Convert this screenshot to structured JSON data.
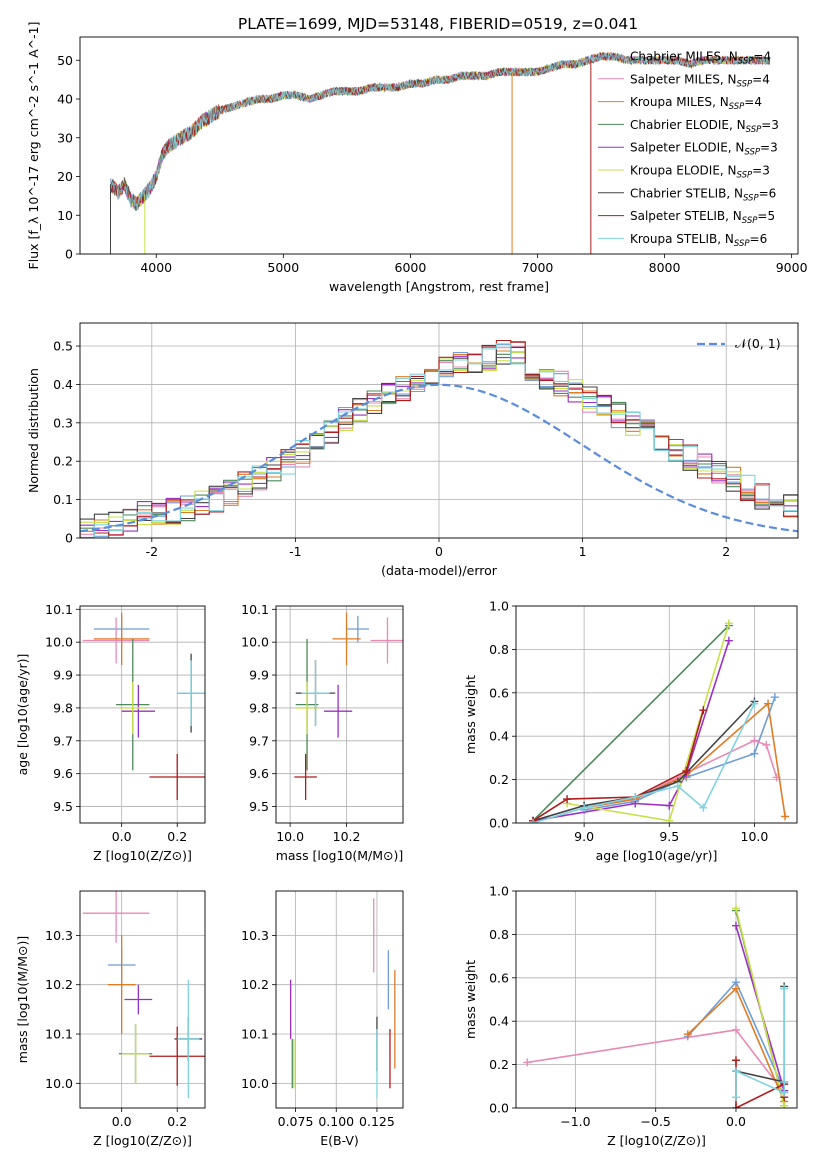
{
  "figure_title": "PLATE=1699, MJD=53148, FIBERID=0519, z=0.041",
  "models": [
    {
      "name": "Chabrier MILES",
      "nssp": "4",
      "color": "#6f9ed8"
    },
    {
      "name": "Salpeter MILES",
      "nssp": "4",
      "color": "#e88ab6"
    },
    {
      "name": "Kroupa MILES",
      "nssp": "4",
      "color": "#e07b26"
    },
    {
      "name": "Chabrier ELODIE",
      "nssp": "3",
      "color": "#4d8a5a"
    },
    {
      "name": "Salpeter ELODIE",
      "nssp": "3",
      "color": "#9b30c2"
    },
    {
      "name": "Kroupa ELODIE",
      "nssp": "3",
      "color": "#c8e04a"
    },
    {
      "name": "Chabrier STELIB",
      "nssp": "6",
      "color": "#444444"
    },
    {
      "name": "Salpeter STELIB",
      "nssp": "5",
      "color": "#b01c1c"
    },
    {
      "name": "Kroupa STELIB",
      "nssp": "6",
      "color": "#7fd3df"
    }
  ],
  "chart_data": [
    {
      "id": "spectrum",
      "type": "line",
      "xlabel": "wavelength [Angstrom, rest frame]",
      "ylabel": "Flux [f_λ 10^-17 erg cm^-2 s^-1 A^-1]",
      "xlim": [
        3400,
        9050
      ],
      "ylim": [
        0,
        56
      ],
      "xticks": [
        4000,
        5000,
        6000,
        7000,
        8000,
        9000
      ],
      "yticks": [
        0,
        10,
        20,
        30,
        40,
        50
      ],
      "grid": false,
      "legend": "upper-right",
      "spectrum_points": [
        [
          3640,
          18
        ],
        [
          3700,
          16
        ],
        [
          3750,
          18
        ],
        [
          3800,
          14
        ],
        [
          3850,
          13
        ],
        [
          3900,
          15
        ],
        [
          3950,
          17
        ],
        [
          4000,
          20
        ],
        [
          4050,
          26
        ],
        [
          4100,
          28
        ],
        [
          4150,
          29
        ],
        [
          4200,
          30
        ],
        [
          4250,
          31
        ],
        [
          4300,
          32
        ],
        [
          4350,
          34
        ],
        [
          4400,
          35
        ],
        [
          4500,
          37
        ],
        [
          4600,
          38
        ],
        [
          4700,
          39
        ],
        [
          4800,
          40
        ],
        [
          4900,
          40
        ],
        [
          5000,
          41
        ],
        [
          5100,
          41
        ],
        [
          5200,
          40
        ],
        [
          5300,
          41
        ],
        [
          5400,
          42
        ],
        [
          5500,
          42
        ],
        [
          5600,
          42
        ],
        [
          5700,
          43
        ],
        [
          5800,
          43
        ],
        [
          5900,
          43
        ],
        [
          6000,
          44
        ],
        [
          6100,
          44
        ],
        [
          6200,
          45
        ],
        [
          6300,
          45
        ],
        [
          6400,
          46
        ],
        [
          6500,
          46
        ],
        [
          6600,
          46
        ],
        [
          6700,
          47
        ],
        [
          6800,
          47
        ],
        [
          6900,
          47
        ],
        [
          7000,
          47
        ],
        [
          7100,
          48
        ],
        [
          7200,
          49
        ],
        [
          7300,
          49
        ],
        [
          7400,
          50
        ],
        [
          7500,
          51
        ],
        [
          7600,
          51
        ],
        [
          7700,
          50
        ],
        [
          7800,
          50
        ],
        [
          7900,
          50
        ],
        [
          8000,
          50
        ],
        [
          8100,
          50
        ],
        [
          8200,
          49
        ],
        [
          8300,
          50
        ],
        [
          8400,
          50
        ],
        [
          8500,
          50
        ],
        [
          8600,
          50
        ],
        [
          8700,
          50
        ],
        [
          8830,
          50
        ]
      ],
      "dropouts": [
        {
          "x": 3640,
          "model": "Chabrier STELIB"
        },
        {
          "x": 3910,
          "model": "Kroupa ELODIE"
        },
        {
          "x": 6800,
          "model": "Kroupa MILES"
        },
        {
          "x": 7420,
          "model": "Salpeter STELIB"
        }
      ]
    },
    {
      "id": "residuals",
      "type": "histogram",
      "xlabel": "(data-model)/error",
      "ylabel": "Normed distribution",
      "xlim": [
        -2.5,
        2.5
      ],
      "ylim": [
        0,
        0.56
      ],
      "xticks": [
        -2,
        -1,
        0,
        1,
        2
      ],
      "yticks": [
        0.0,
        0.1,
        0.2,
        0.3,
        0.4,
        0.5
      ],
      "grid": true,
      "legend": "upper-right",
      "reference_label": "𝒩(0, 1)",
      "bin_edges_start": -2.5,
      "bin_width": 0.1,
      "base_hist": [
        0.02,
        0.03,
        0.04,
        0.05,
        0.06,
        0.06,
        0.07,
        0.08,
        0.09,
        0.1,
        0.12,
        0.14,
        0.16,
        0.18,
        0.2,
        0.22,
        0.25,
        0.28,
        0.31,
        0.33,
        0.35,
        0.37,
        0.39,
        0.41,
        0.43,
        0.44,
        0.45,
        0.46,
        0.47,
        0.48,
        0.48,
        0.44,
        0.42,
        0.4,
        0.38,
        0.36,
        0.34,
        0.32,
        0.3,
        0.28,
        0.26,
        0.23,
        0.21,
        0.19,
        0.17,
        0.15,
        0.13,
        0.11,
        0.1,
        0.09,
        0.08,
        0.07,
        0.06,
        0.05,
        0.04,
        0.04,
        0.03,
        0.03,
        0.03,
        0.02,
        0.02
      ]
    },
    {
      "id": "age_vs_Z",
      "type": "errorbar",
      "xlabel": "Z [log10(Z/Z⊙)]",
      "ylabel": "age  [log10(age/yr)]",
      "xlim": [
        -0.15,
        0.3
      ],
      "ylim": [
        9.45,
        10.11
      ],
      "xticks": [
        "0.0",
        "0.2"
      ],
      "yticks": [
        "9.5",
        "9.6",
        "9.7",
        "9.8",
        "9.9",
        "10.0",
        "10.1"
      ],
      "grid": true,
      "points": [
        {
          "x": 0.0,
          "y": 10.04,
          "xerr": 0.1,
          "yerr": 0.04
        },
        {
          "x": -0.02,
          "y": 10.005,
          "xerr": 0.12,
          "yerr": 0.07
        },
        {
          "x": 0.0,
          "y": 10.01,
          "xerr": 0.1,
          "yerr": 0.08
        },
        {
          "x": 0.04,
          "y": 9.81,
          "xerr": 0.06,
          "yerr": 0.2
        },
        {
          "x": 0.06,
          "y": 9.79,
          "xerr": 0.06,
          "yerr": 0.08
        },
        {
          "x": 0.04,
          "y": 9.8,
          "xerr": 0.05,
          "yerr": 0.08
        },
        {
          "x": 0.25,
          "y": 9.845,
          "xerr": 0.05,
          "yerr": 0.12
        },
        {
          "x": 0.2,
          "y": 9.59,
          "xerr": 0.1,
          "yerr": 0.07
        },
        {
          "x": 0.25,
          "y": 9.845,
          "xerr": 0.05,
          "yerr": 0.1
        }
      ]
    },
    {
      "id": "age_vs_mass",
      "type": "errorbar",
      "xlabel": "mass [log10(M/M⊙)]",
      "ylabel": "",
      "xlim": [
        9.95,
        10.4
      ],
      "ylim": [
        9.45,
        10.11
      ],
      "xticks": [
        "10.0",
        "10.2"
      ],
      "yticks": [
        "9.5",
        "9.6",
        "9.7",
        "9.8",
        "9.9",
        "10.0",
        "10.1"
      ],
      "grid": true,
      "points": [
        {
          "x": 10.24,
          "y": 10.04,
          "xerr": 0.04,
          "yerr": 0.04
        },
        {
          "x": 10.345,
          "y": 10.005,
          "xerr": 0.06,
          "yerr": 0.07
        },
        {
          "x": 10.2,
          "y": 10.01,
          "xerr": 0.05,
          "yerr": 0.08
        },
        {
          "x": 10.06,
          "y": 9.81,
          "xerr": 0.04,
          "yerr": 0.2
        },
        {
          "x": 10.17,
          "y": 9.79,
          "xerr": 0.05,
          "yerr": 0.08
        },
        {
          "x": 10.06,
          "y": 9.8,
          "xerr": 0.04,
          "yerr": 0.08
        },
        {
          "x": 10.09,
          "y": 9.845,
          "xerr": 0.07,
          "yerr": 0.1
        },
        {
          "x": 10.055,
          "y": 9.59,
          "xerr": 0.04,
          "yerr": 0.07
        },
        {
          "x": 10.09,
          "y": 9.845,
          "xerr": 0.05,
          "yerr": 0.1
        }
      ]
    },
    {
      "id": "weight_vs_age",
      "type": "line",
      "xlabel": "age  [log10(age/yr)]",
      "ylabel": "mass weight",
      "xlim": [
        8.6,
        10.25
      ],
      "ylim": [
        0,
        1.0
      ],
      "xticks": [
        "9.0",
        "9.5",
        "10.0"
      ],
      "yticks": [
        "0.0",
        "0.2",
        "0.4",
        "0.6",
        "0.8",
        "1.0"
      ],
      "grid": true,
      "series": [
        {
          "model": "Chabrier MILES",
          "x": [
            9.0,
            9.3,
            9.6,
            10.0,
            10.12
          ],
          "y": [
            0.06,
            0.1,
            0.21,
            0.32,
            0.58
          ]
        },
        {
          "model": "Salpeter MILES",
          "x": [
            9.0,
            9.3,
            9.6,
            10.0,
            10.07,
            10.13
          ],
          "y": [
            0.07,
            0.11,
            0.23,
            0.38,
            0.36,
            0.21
          ]
        },
        {
          "model": "Kroupa MILES",
          "x": [
            9.0,
            9.3,
            9.6,
            10.08,
            10.18
          ],
          "y": [
            0.07,
            0.11,
            0.22,
            0.55,
            0.03
          ]
        },
        {
          "model": "Chabrier ELODIE",
          "x": [
            8.7,
            9.85
          ],
          "y": [
            0.01,
            0.91
          ]
        },
        {
          "model": "Salpeter ELODIE",
          "x": [
            8.7,
            9.3,
            9.5,
            9.6,
            9.85
          ],
          "y": [
            0.01,
            0.09,
            0.08,
            0.23,
            0.84
          ]
        },
        {
          "model": "Kroupa ELODIE",
          "x": [
            8.9,
            9.5,
            9.85
          ],
          "y": [
            0.09,
            0.01,
            0.92
          ]
        },
        {
          "model": "Chabrier STELIB",
          "x": [
            8.7,
            9.0,
            9.3,
            9.55,
            10.0
          ],
          "y": [
            0.01,
            0.08,
            0.12,
            0.19,
            0.56
          ]
        },
        {
          "model": "Salpeter STELIB",
          "x": [
            8.7,
            8.9,
            9.3,
            9.6,
            9.7
          ],
          "y": [
            0.01,
            0.11,
            0.12,
            0.24,
            0.52
          ]
        },
        {
          "model": "Kroupa STELIB",
          "x": [
            8.7,
            9.0,
            9.3,
            9.55,
            9.7,
            10.0
          ],
          "y": [
            0.0,
            0.07,
            0.12,
            0.17,
            0.07,
            0.55
          ]
        }
      ]
    },
    {
      "id": "mass_vs_Z",
      "type": "errorbar",
      "xlabel": "Z [log10(Z/Z⊙)]",
      "ylabel": "mass [log10(M/M⊙)]",
      "xlim": [
        -0.15,
        0.3
      ],
      "ylim": [
        9.95,
        10.39
      ],
      "xticks": [
        "0.0",
        "0.2"
      ],
      "yticks": [
        "10.0",
        "10.1",
        "10.2",
        "10.3"
      ],
      "grid": true,
      "points": [
        {
          "x": 0.0,
          "y": 10.24,
          "xerr": 0.05,
          "yerr": 0.035
        },
        {
          "x": -0.02,
          "y": 10.345,
          "xerr": 0.12,
          "yerr": 0.06
        },
        {
          "x": 0.0,
          "y": 10.2,
          "xerr": 0.05,
          "yerr": 0.1
        },
        {
          "x": 0.05,
          "y": 10.06,
          "xerr": 0.06,
          "yerr": 0.06
        },
        {
          "x": 0.06,
          "y": 10.17,
          "xerr": 0.05,
          "yerr": 0.03
        },
        {
          "x": 0.05,
          "y": 10.06,
          "xerr": 0.05,
          "yerr": 0.06
        },
        {
          "x": 0.24,
          "y": 10.09,
          "xerr": 0.05,
          "yerr": 0.045
        },
        {
          "x": 0.2,
          "y": 10.055,
          "xerr": 0.1,
          "yerr": 0.06
        },
        {
          "x": 0.24,
          "y": 10.09,
          "xerr": 0.04,
          "yerr": 0.12
        }
      ]
    },
    {
      "id": "mass_vs_ebv",
      "type": "errorbar",
      "xlabel": "E(B-V)",
      "ylabel": "",
      "xlim": [
        0.063,
        0.141
      ],
      "ylim": [
        9.95,
        10.39
      ],
      "xticks": [
        "0.075",
        "0.100",
        "0.125"
      ],
      "yticks": [
        "10.0",
        "10.1",
        "10.2",
        "10.3"
      ],
      "grid": true,
      "points": [
        {
          "x": 0.132,
          "y": 10.21,
          "xerr": 0.0,
          "yerr": 0.06
        },
        {
          "x": 0.123,
          "y": 10.3,
          "xerr": 0.0,
          "yerr": 0.075
        },
        {
          "x": 0.136,
          "y": 10.13,
          "xerr": 0.0,
          "yerr": 0.1
        },
        {
          "x": 0.073,
          "y": 10.04,
          "xerr": 0.0,
          "yerr": 0.05
        },
        {
          "x": 0.072,
          "y": 10.15,
          "xerr": 0.0,
          "yerr": 0.06
        },
        {
          "x": 0.074,
          "y": 10.04,
          "xerr": 0.0,
          "yerr": 0.05
        },
        {
          "x": 0.125,
          "y": 10.08,
          "xerr": 0.0,
          "yerr": 0.055
        },
        {
          "x": 0.133,
          "y": 10.05,
          "xerr": 0.0,
          "yerr": 0.06
        },
        {
          "x": 0.125,
          "y": 10.04,
          "xerr": 0.0,
          "yerr": 0.07
        }
      ]
    },
    {
      "id": "weight_vs_Z",
      "type": "line",
      "xlabel": "Z [log10(Z/Z⊙)]",
      "ylabel": "mass weight",
      "xlim": [
        -1.37,
        0.38
      ],
      "ylim": [
        0,
        1.0
      ],
      "xticks": [
        "−1.0",
        "−0.5",
        "0.0"
      ],
      "yticks": [
        "0.0",
        "0.2",
        "0.4",
        "0.6",
        "0.8",
        "1.0"
      ],
      "grid": true,
      "series": [
        {
          "model": "Chabrier MILES",
          "x": [
            -0.3,
            0.0,
            0.3
          ],
          "y": [
            0.33,
            0.58,
            0.08
          ]
        },
        {
          "model": "Salpeter MILES",
          "x": [
            -1.3,
            0.0,
            0.3
          ],
          "y": [
            0.21,
            0.36,
            0.07
          ]
        },
        {
          "model": "Kroupa MILES",
          "x": [
            -0.3,
            0.0,
            0.3
          ],
          "y": [
            0.34,
            0.55,
            0.03
          ]
        },
        {
          "model": "Chabrier ELODIE",
          "x": [
            0.0,
            0.3
          ],
          "y": [
            0.91,
            0.01
          ]
        },
        {
          "model": "Salpeter ELODIE",
          "x": [
            0.0,
            0.3
          ],
          "y": [
            0.84,
            0.08
          ]
        },
        {
          "model": "Kroupa ELODIE",
          "x": [
            0.0,
            0.3
          ],
          "y": [
            0.92,
            0.01
          ]
        },
        {
          "model": "Chabrier STELIB",
          "x": [
            0.0,
            0.3,
            0.3
          ],
          "y": [
            0.17,
            0.12,
            0.56
          ]
        },
        {
          "model": "Salpeter STELIB",
          "x": [
            0.0,
            0.0,
            0.3,
            0.3
          ],
          "y": [
            0.22,
            0.0,
            0.11,
            0.05
          ]
        },
        {
          "model": "Kroupa STELIB",
          "x": [
            0.0,
            0.0,
            0.3,
            0.3,
            0.3
          ],
          "y": [
            0.05,
            0.17,
            0.07,
            0.12,
            0.55
          ]
        }
      ]
    }
  ]
}
